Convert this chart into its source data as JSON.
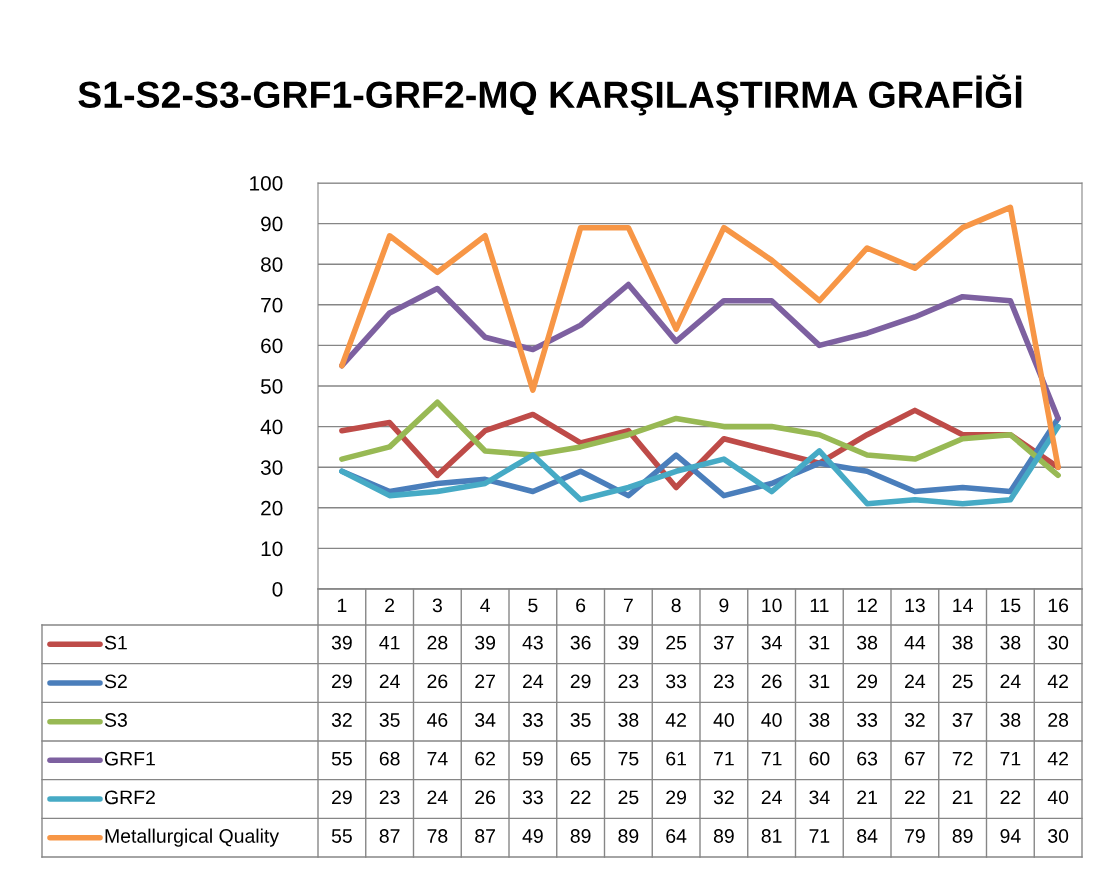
{
  "chart_data": {
    "type": "line",
    "title": "S1-S2-S3-GRF1-GRF2-MQ KARŞILAŞTIRMA GRAFİĞİ",
    "categories": [
      "1",
      "2",
      "3",
      "4",
      "5",
      "6",
      "7",
      "8",
      "9",
      "10",
      "11",
      "12",
      "13",
      "14",
      "15",
      "16"
    ],
    "series": [
      {
        "name": "S1",
        "color": "#be4b48",
        "values": [
          39,
          41,
          28,
          39,
          43,
          36,
          39,
          25,
          37,
          34,
          31,
          38,
          44,
          38,
          38,
          30
        ]
      },
      {
        "name": "S2",
        "color": "#4a7ebb",
        "values": [
          29,
          24,
          26,
          27,
          24,
          29,
          23,
          33,
          23,
          26,
          31,
          29,
          24,
          25,
          24,
          42
        ]
      },
      {
        "name": "S3",
        "color": "#98b954",
        "values": [
          32,
          35,
          46,
          34,
          33,
          35,
          38,
          42,
          40,
          40,
          38,
          33,
          32,
          37,
          38,
          28
        ]
      },
      {
        "name": "GRF1",
        "color": "#7d60a0",
        "values": [
          55,
          68,
          74,
          62,
          59,
          65,
          75,
          61,
          71,
          71,
          60,
          63,
          67,
          72,
          71,
          42
        ]
      },
      {
        "name": "GRF2",
        "color": "#46aac5",
        "values": [
          29,
          23,
          24,
          26,
          33,
          22,
          25,
          29,
          32,
          24,
          34,
          21,
          22,
          21,
          22,
          40
        ]
      },
      {
        "name": "Metallurgical Quality",
        "color": "#f79646",
        "values": [
          55,
          87,
          78,
          87,
          49,
          89,
          89,
          64,
          89,
          81,
          71,
          84,
          79,
          89,
          94,
          30
        ]
      }
    ],
    "ylim": [
      0,
      100
    ],
    "yticks": [
      0,
      10,
      20,
      30,
      40,
      50,
      60,
      70,
      80,
      90,
      100
    ],
    "grid": "y",
    "legend": "bottom",
    "data_labels": true,
    "marker": "none",
    "line_style": "solid"
  }
}
